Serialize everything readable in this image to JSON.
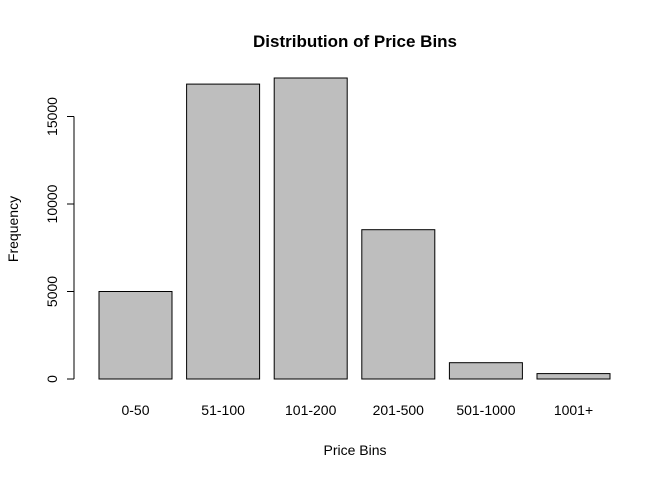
{
  "chart_data": {
    "type": "bar",
    "title": "Distribution of Price Bins",
    "xlabel": "Price Bins",
    "ylabel": "Frequency",
    "categories": [
      "0-50",
      "51-100",
      "101-200",
      "201-500",
      "501-1000",
      "1001+"
    ],
    "values": [
      5000,
      16850,
      17200,
      8530,
      930,
      310
    ],
    "ylim": [
      0,
      17200
    ],
    "yticks": [
      0,
      5000,
      10000,
      15000
    ],
    "grid": false,
    "colors": {
      "bar_fill": "#bebebe",
      "bar_stroke": "#000000"
    }
  }
}
